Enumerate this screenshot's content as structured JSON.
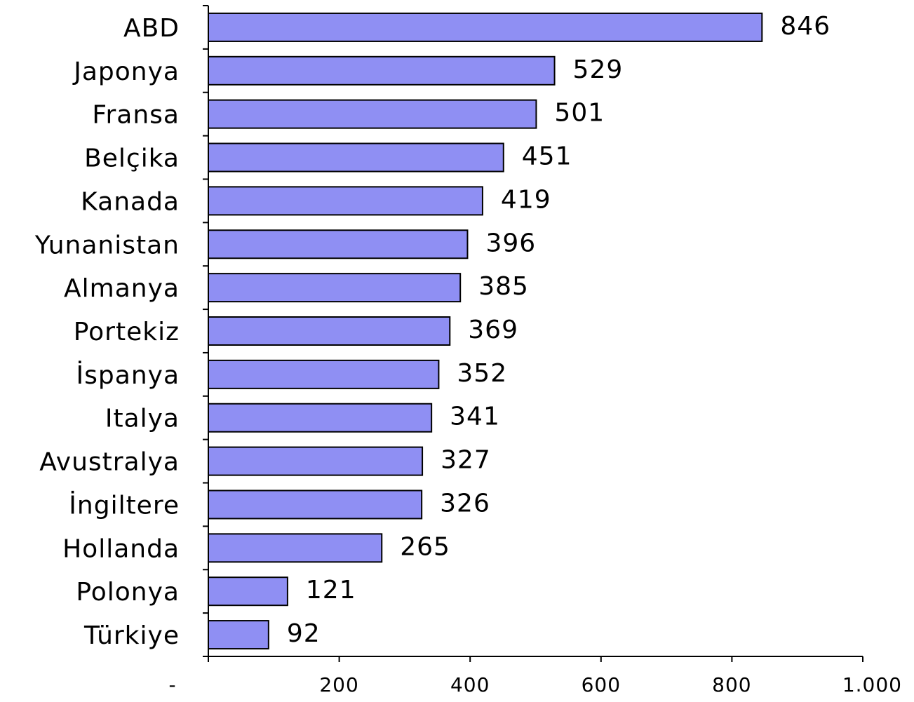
{
  "chart_data": {
    "type": "bar",
    "orientation": "horizontal",
    "title": "",
    "xlabel": "",
    "ylabel": "",
    "categories": [
      "ABD",
      "Japonya",
      "Fransa",
      "Belçika",
      "Kanada",
      "Yunanistan",
      "Almanya",
      "Portekiz",
      "İspanya",
      "Italya",
      "Avustralya",
      "İngiltere",
      "Hollanda",
      "Polonya",
      "Türkiye"
    ],
    "values": [
      846,
      529,
      501,
      451,
      419,
      396,
      385,
      369,
      352,
      341,
      327,
      326,
      265,
      121,
      92
    ],
    "value_labels": [
      "846",
      "529",
      "501",
      "451",
      "419",
      "396",
      "385",
      "369",
      "352",
      "341",
      "327",
      "326",
      "265",
      "121",
      "92"
    ],
    "xlim": [
      0,
      1000
    ],
    "xticks": [
      0,
      200,
      400,
      600,
      800,
      1000
    ],
    "xtick_labels": [
      "-",
      "200",
      "400",
      "600",
      "800",
      "1.000"
    ],
    "bar_color": "#8f8ff3",
    "grid": false,
    "legend": "none"
  }
}
